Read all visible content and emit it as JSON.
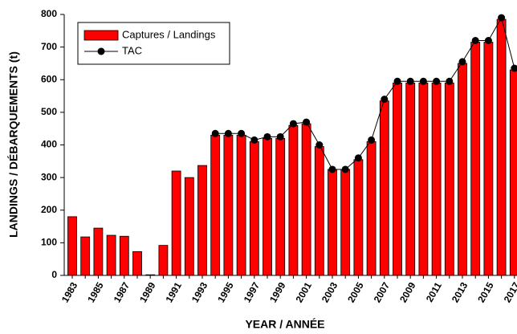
{
  "chart_data": {
    "type": "bar",
    "xlabel": "YEAR / ANNÉE",
    "ylabel": "LANDINGS / DÉBARQUEMENTS (t)",
    "categories": [
      "1983",
      null,
      "1985",
      null,
      "1987",
      null,
      "1989",
      null,
      "1991",
      null,
      "1993",
      null,
      "1995",
      null,
      "1997",
      null,
      "1999",
      null,
      "2001",
      null,
      "2003",
      null,
      "2005",
      null,
      "2007",
      null,
      "2009",
      null,
      "2011",
      null,
      "2013",
      null,
      "2015",
      null,
      "2017"
    ],
    "series": [
      {
        "name": "Captures / Landings",
        "type": "bar",
        "color": "#ff0000",
        "values": [
          180,
          118,
          145,
          123,
          120,
          73,
          2,
          92,
          320,
          300,
          337,
          430,
          430,
          430,
          410,
          420,
          420,
          460,
          465,
          395,
          325,
          325,
          355,
          410,
          535,
          590,
          590,
          590,
          590,
          590,
          650,
          715,
          715,
          785,
          630
        ]
      },
      {
        "name": "TAC",
        "type": "line",
        "color": "#000000",
        "values": [
          null,
          null,
          null,
          null,
          null,
          null,
          null,
          null,
          null,
          null,
          null,
          435,
          435,
          435,
          415,
          425,
          425,
          465,
          470,
          400,
          325,
          325,
          360,
          415,
          540,
          595,
          595,
          595,
          595,
          595,
          655,
          720,
          720,
          790,
          635
        ]
      }
    ],
    "ylim": [
      0,
      800
    ],
    "yticks": [
      0,
      100,
      200,
      300,
      400,
      500,
      600,
      700,
      800
    ],
    "legend": "top-left"
  }
}
